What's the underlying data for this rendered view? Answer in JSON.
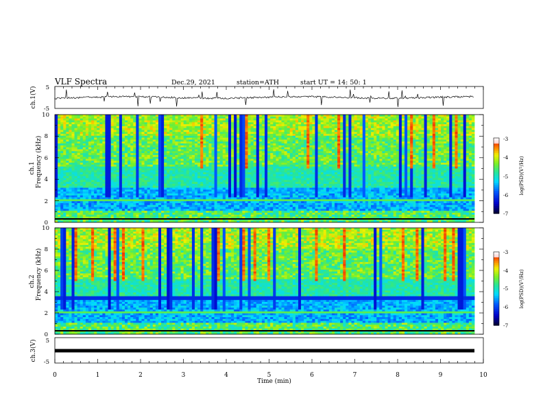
{
  "header": {
    "title": "VLF  Spectra",
    "date": "Dec.29, 2021",
    "station": "station=ATH",
    "start": "start  UT  =    14: 50: 1"
  },
  "chart_data": [
    {
      "type": "line",
      "name": "ch1-waveform",
      "ylabel": "ch.1(V)",
      "ylim": [
        -5,
        5
      ],
      "yticks": [
        "5",
        "-5"
      ],
      "xlim": [
        0,
        10
      ]
    },
    {
      "type": "heatmap",
      "name": "ch1-spectrogram",
      "ylabel_line1": "ch.1",
      "ylabel_line2": "Frequency  (kHz)",
      "ylim": [
        0,
        10
      ],
      "yticks": [
        "0",
        "2",
        "4",
        "6",
        "8",
        "10"
      ],
      "xlim": [
        0,
        10
      ],
      "colorbar": {
        "label": "log(PSD)(V²/Hz)",
        "range": [
          -7,
          -3
        ],
        "ticks": [
          "-3",
          "-4",
          "-5",
          "-6",
          "-7"
        ]
      }
    },
    {
      "type": "heatmap",
      "name": "ch2-spectrogram",
      "ylabel_line1": "ch.2",
      "ylabel_line2": "Frequency  (kHz)",
      "ylim": [
        0,
        10
      ],
      "yticks": [
        "0",
        "2",
        "4",
        "6",
        "8",
        "10"
      ],
      "xlim": [
        0,
        10
      ],
      "colorbar": {
        "label": "log(PSD)(V²/Hz)",
        "range": [
          -7,
          -3
        ],
        "ticks": [
          "-3",
          "-4",
          "-5",
          "-6",
          "-7"
        ]
      }
    },
    {
      "type": "line",
      "name": "ch3-waveform",
      "ylabel": "ch.3(V)",
      "ylim": [
        -5,
        5
      ],
      "yticks": [
        "5",
        "-5"
      ],
      "xlim": [
        0,
        10
      ],
      "xlabel": "Time  (min)",
      "xticks": [
        "0",
        "1",
        "2",
        "3",
        "4",
        "5",
        "6",
        "7",
        "8",
        "9",
        "10"
      ]
    }
  ]
}
